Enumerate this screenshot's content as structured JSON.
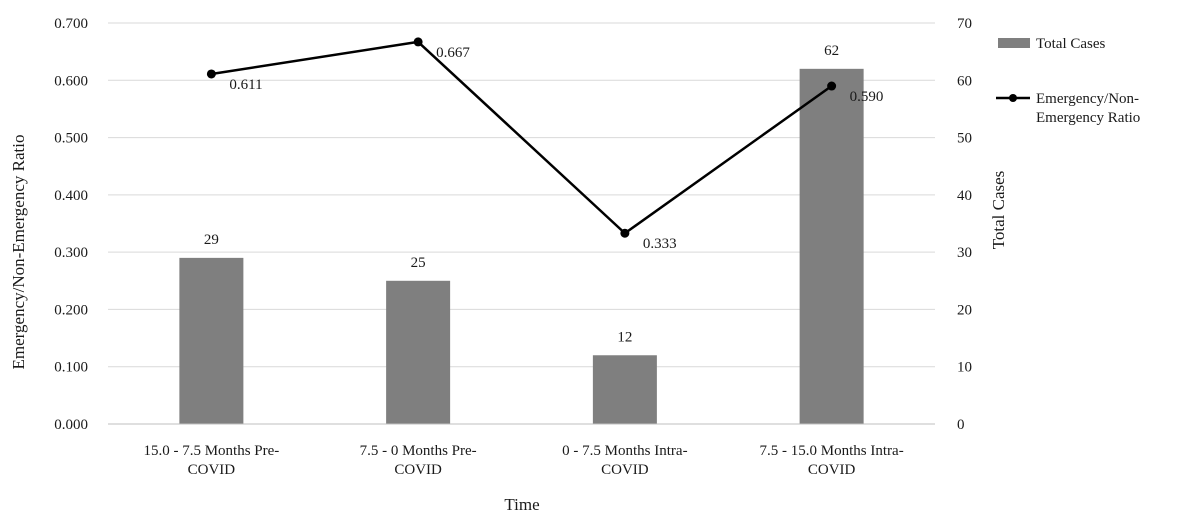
{
  "chart_data": {
    "type": "bar",
    "categories": [
      [
        "15.0 - 7.5 Months Pre-",
        "COVID"
      ],
      [
        "7.5 - 0 Months Pre-",
        "COVID"
      ],
      [
        "0 - 7.5 Months Intra-",
        "COVID"
      ],
      [
        "7.5 - 15.0 Months Intra-",
        "COVID"
      ]
    ],
    "series": [
      {
        "name": "Total Cases",
        "type": "bar",
        "axis": "right",
        "values": [
          29,
          25,
          12,
          62
        ],
        "color": "#7f7f7f"
      },
      {
        "name": "Emergency/Non-Emergency Ratio",
        "legend_lines": [
          "Emergency/Non-",
          "Emergency Ratio"
        ],
        "type": "line",
        "axis": "left",
        "values": [
          0.611,
          0.667,
          0.333,
          0.59
        ],
        "labels": [
          "0.611",
          "0.667",
          "0.333",
          "0.590"
        ],
        "color": "#000000"
      }
    ],
    "xlabel": "Time",
    "ylabel": "Emergency/Non-Emergency Ratio",
    "y2label": "Total Cases",
    "ylim": [
      0,
      0.7
    ],
    "y2lim": [
      0,
      70
    ],
    "yticks": [
      "0.000",
      "0.100",
      "0.200",
      "0.300",
      "0.400",
      "0.500",
      "0.600",
      "0.700"
    ],
    "y2ticks": [
      "0",
      "10",
      "20",
      "30",
      "40",
      "50",
      "60",
      "70"
    ],
    "grid": true,
    "legend_position": "right"
  }
}
